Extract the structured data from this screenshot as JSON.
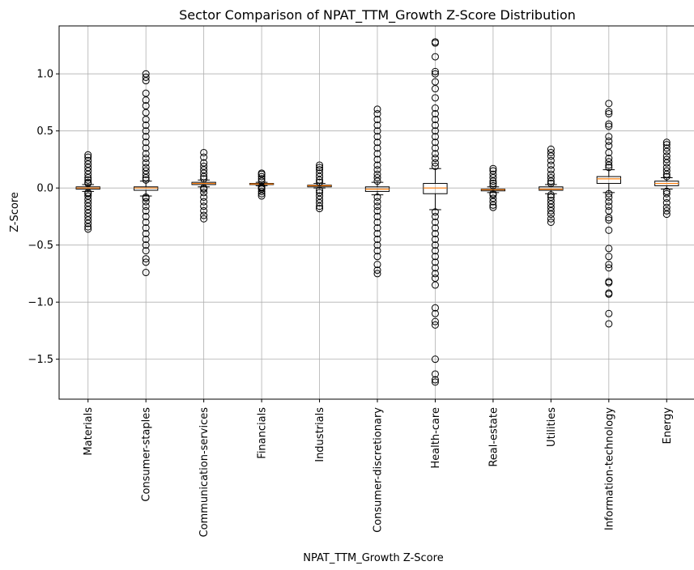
{
  "chart_data": {
    "type": "box",
    "title": "Sector Comparison of NPAT_TTM_Growth Z-Score Distribution",
    "xlabel": "NPAT_TTM_Growth Z-Score",
    "ylabel": "Z-Score",
    "ylim": [
      -1.85,
      1.42
    ],
    "yticks": [
      -1.5,
      -1.0,
      -0.5,
      0.0,
      0.5,
      1.0
    ],
    "ytick_labels": [
      "−1.5",
      "−1.0",
      "−0.5",
      "0.0",
      "0.5",
      "1.0"
    ],
    "grid": true,
    "median_color": "#ff7f0e",
    "categories": [
      "Materials",
      "Consumer-staples",
      "Communication-services",
      "Financials",
      "Industrials",
      "Consumer-discretionary",
      "Health-care",
      "Real-estate",
      "Utilities",
      "Information-technology",
      "Energy"
    ],
    "boxes": [
      {
        "q1": -0.01,
        "median": 0.0,
        "q3": 0.01,
        "whisker_low": -0.03,
        "whisker_high": 0.03,
        "outliers": [
          -0.36,
          -0.34,
          -0.31,
          -0.28,
          -0.25,
          -0.22,
          -0.19,
          -0.16,
          -0.13,
          -0.1,
          -0.07,
          -0.05,
          -0.04,
          0.04,
          0.05,
          0.07,
          0.09,
          0.12,
          0.15,
          0.18,
          0.21,
          0.24,
          0.27,
          0.29
        ]
      },
      {
        "q1": -0.02,
        "median": 0.0,
        "q3": 0.01,
        "whisker_low": -0.07,
        "whisker_high": 0.06,
        "outliers": [
          -0.74,
          -0.65,
          -0.62,
          -0.55,
          -0.5,
          -0.45,
          -0.4,
          -0.35,
          -0.3,
          -0.25,
          -0.2,
          -0.16,
          -0.12,
          -0.09,
          -0.08,
          0.07,
          0.09,
          0.12,
          0.15,
          0.18,
          0.22,
          0.26,
          0.3,
          0.35,
          0.4,
          0.45,
          0.5,
          0.55,
          0.6,
          0.66,
          0.72,
          0.77,
          0.83,
          0.94,
          0.97,
          1.0
        ]
      },
      {
        "q1": 0.03,
        "median": 0.04,
        "q3": 0.05,
        "whisker_low": 0.01,
        "whisker_high": 0.07,
        "outliers": [
          -0.27,
          -0.24,
          -0.2,
          -0.16,
          -0.12,
          -0.08,
          -0.04,
          -0.01,
          0.0,
          0.08,
          0.1,
          0.13,
          0.16,
          0.19,
          0.22,
          0.27,
          0.31
        ]
      },
      {
        "q1": 0.03,
        "median": 0.035,
        "q3": 0.04,
        "whisker_low": 0.02,
        "whisker_high": 0.05,
        "outliers": [
          -0.07,
          -0.05,
          -0.03,
          -0.01,
          0.0,
          0.01,
          0.06,
          0.08,
          0.1,
          0.12,
          0.13
        ]
      },
      {
        "q1": 0.01,
        "median": 0.02,
        "q3": 0.025,
        "whisker_low": 0.0,
        "whisker_high": 0.04,
        "outliers": [
          -0.18,
          -0.16,
          -0.13,
          -0.1,
          -0.07,
          -0.04,
          -0.02,
          0.05,
          0.07,
          0.1,
          0.13,
          0.16,
          0.18,
          0.2
        ]
      },
      {
        "q1": -0.03,
        "median": -0.01,
        "q3": 0.01,
        "whisker_low": -0.06,
        "whisker_high": 0.05,
        "outliers": [
          -0.75,
          -0.72,
          -0.67,
          -0.6,
          -0.55,
          -0.5,
          -0.45,
          -0.4,
          -0.35,
          -0.3,
          -0.25,
          -0.2,
          -0.16,
          -0.12,
          -0.08,
          0.06,
          0.09,
          0.12,
          0.16,
          0.2,
          0.25,
          0.3,
          0.35,
          0.4,
          0.45,
          0.5,
          0.55,
          0.6,
          0.65,
          0.69
        ]
      },
      {
        "q1": -0.05,
        "median": 0.0,
        "q3": 0.04,
        "whisker_low": -0.19,
        "whisker_high": 0.17,
        "outliers": [
          -1.7,
          -1.68,
          -1.63,
          -1.5,
          -1.2,
          -1.17,
          -1.1,
          -1.05,
          -0.85,
          -0.79,
          -0.75,
          -0.7,
          -0.65,
          -0.6,
          -0.55,
          -0.5,
          -0.45,
          -0.4,
          -0.35,
          -0.3,
          -0.25,
          -0.21,
          0.19,
          0.22,
          0.26,
          0.3,
          0.35,
          0.4,
          0.45,
          0.5,
          0.55,
          0.6,
          0.65,
          0.7,
          0.79,
          0.87,
          0.93,
          1.0,
          1.02,
          1.15,
          1.27,
          1.28
        ]
      },
      {
        "q1": -0.025,
        "median": -0.015,
        "q3": -0.01,
        "whisker_low": -0.04,
        "whisker_high": 0.01,
        "outliers": [
          -0.17,
          -0.15,
          -0.12,
          -0.09,
          -0.06,
          -0.05,
          0.02,
          0.04,
          0.06,
          0.09,
          0.12,
          0.15,
          0.17
        ]
      },
      {
        "q1": -0.02,
        "median": -0.01,
        "q3": 0.01,
        "whisker_low": -0.05,
        "whisker_high": 0.03,
        "outliers": [
          -0.3,
          -0.27,
          -0.23,
          -0.2,
          -0.17,
          -0.14,
          -0.11,
          -0.08,
          -0.06,
          0.04,
          0.06,
          0.09,
          0.12,
          0.16,
          0.2,
          0.24,
          0.28,
          0.31,
          0.34
        ]
      },
      {
        "q1": 0.04,
        "median": 0.08,
        "q3": 0.1,
        "whisker_low": -0.04,
        "whisker_high": 0.16,
        "outliers": [
          -1.19,
          -1.1,
          -0.93,
          -0.92,
          -0.83,
          -0.82,
          -0.7,
          -0.67,
          -0.6,
          -0.53,
          -0.37,
          -0.28,
          -0.26,
          -0.2,
          -0.16,
          -0.12,
          -0.08,
          -0.05,
          0.18,
          0.2,
          0.23,
          0.26,
          0.31,
          0.37,
          0.41,
          0.45,
          0.54,
          0.56,
          0.65,
          0.67,
          0.74
        ]
      },
      {
        "q1": 0.02,
        "median": 0.04,
        "q3": 0.06,
        "whisker_low": -0.01,
        "whisker_high": 0.09,
        "outliers": [
          -0.23,
          -0.2,
          -0.17,
          -0.13,
          -0.09,
          -0.05,
          -0.03,
          0.1,
          0.12,
          0.15,
          0.18,
          0.22,
          0.25,
          0.28,
          0.32,
          0.35,
          0.38,
          0.4
        ]
      }
    ]
  }
}
